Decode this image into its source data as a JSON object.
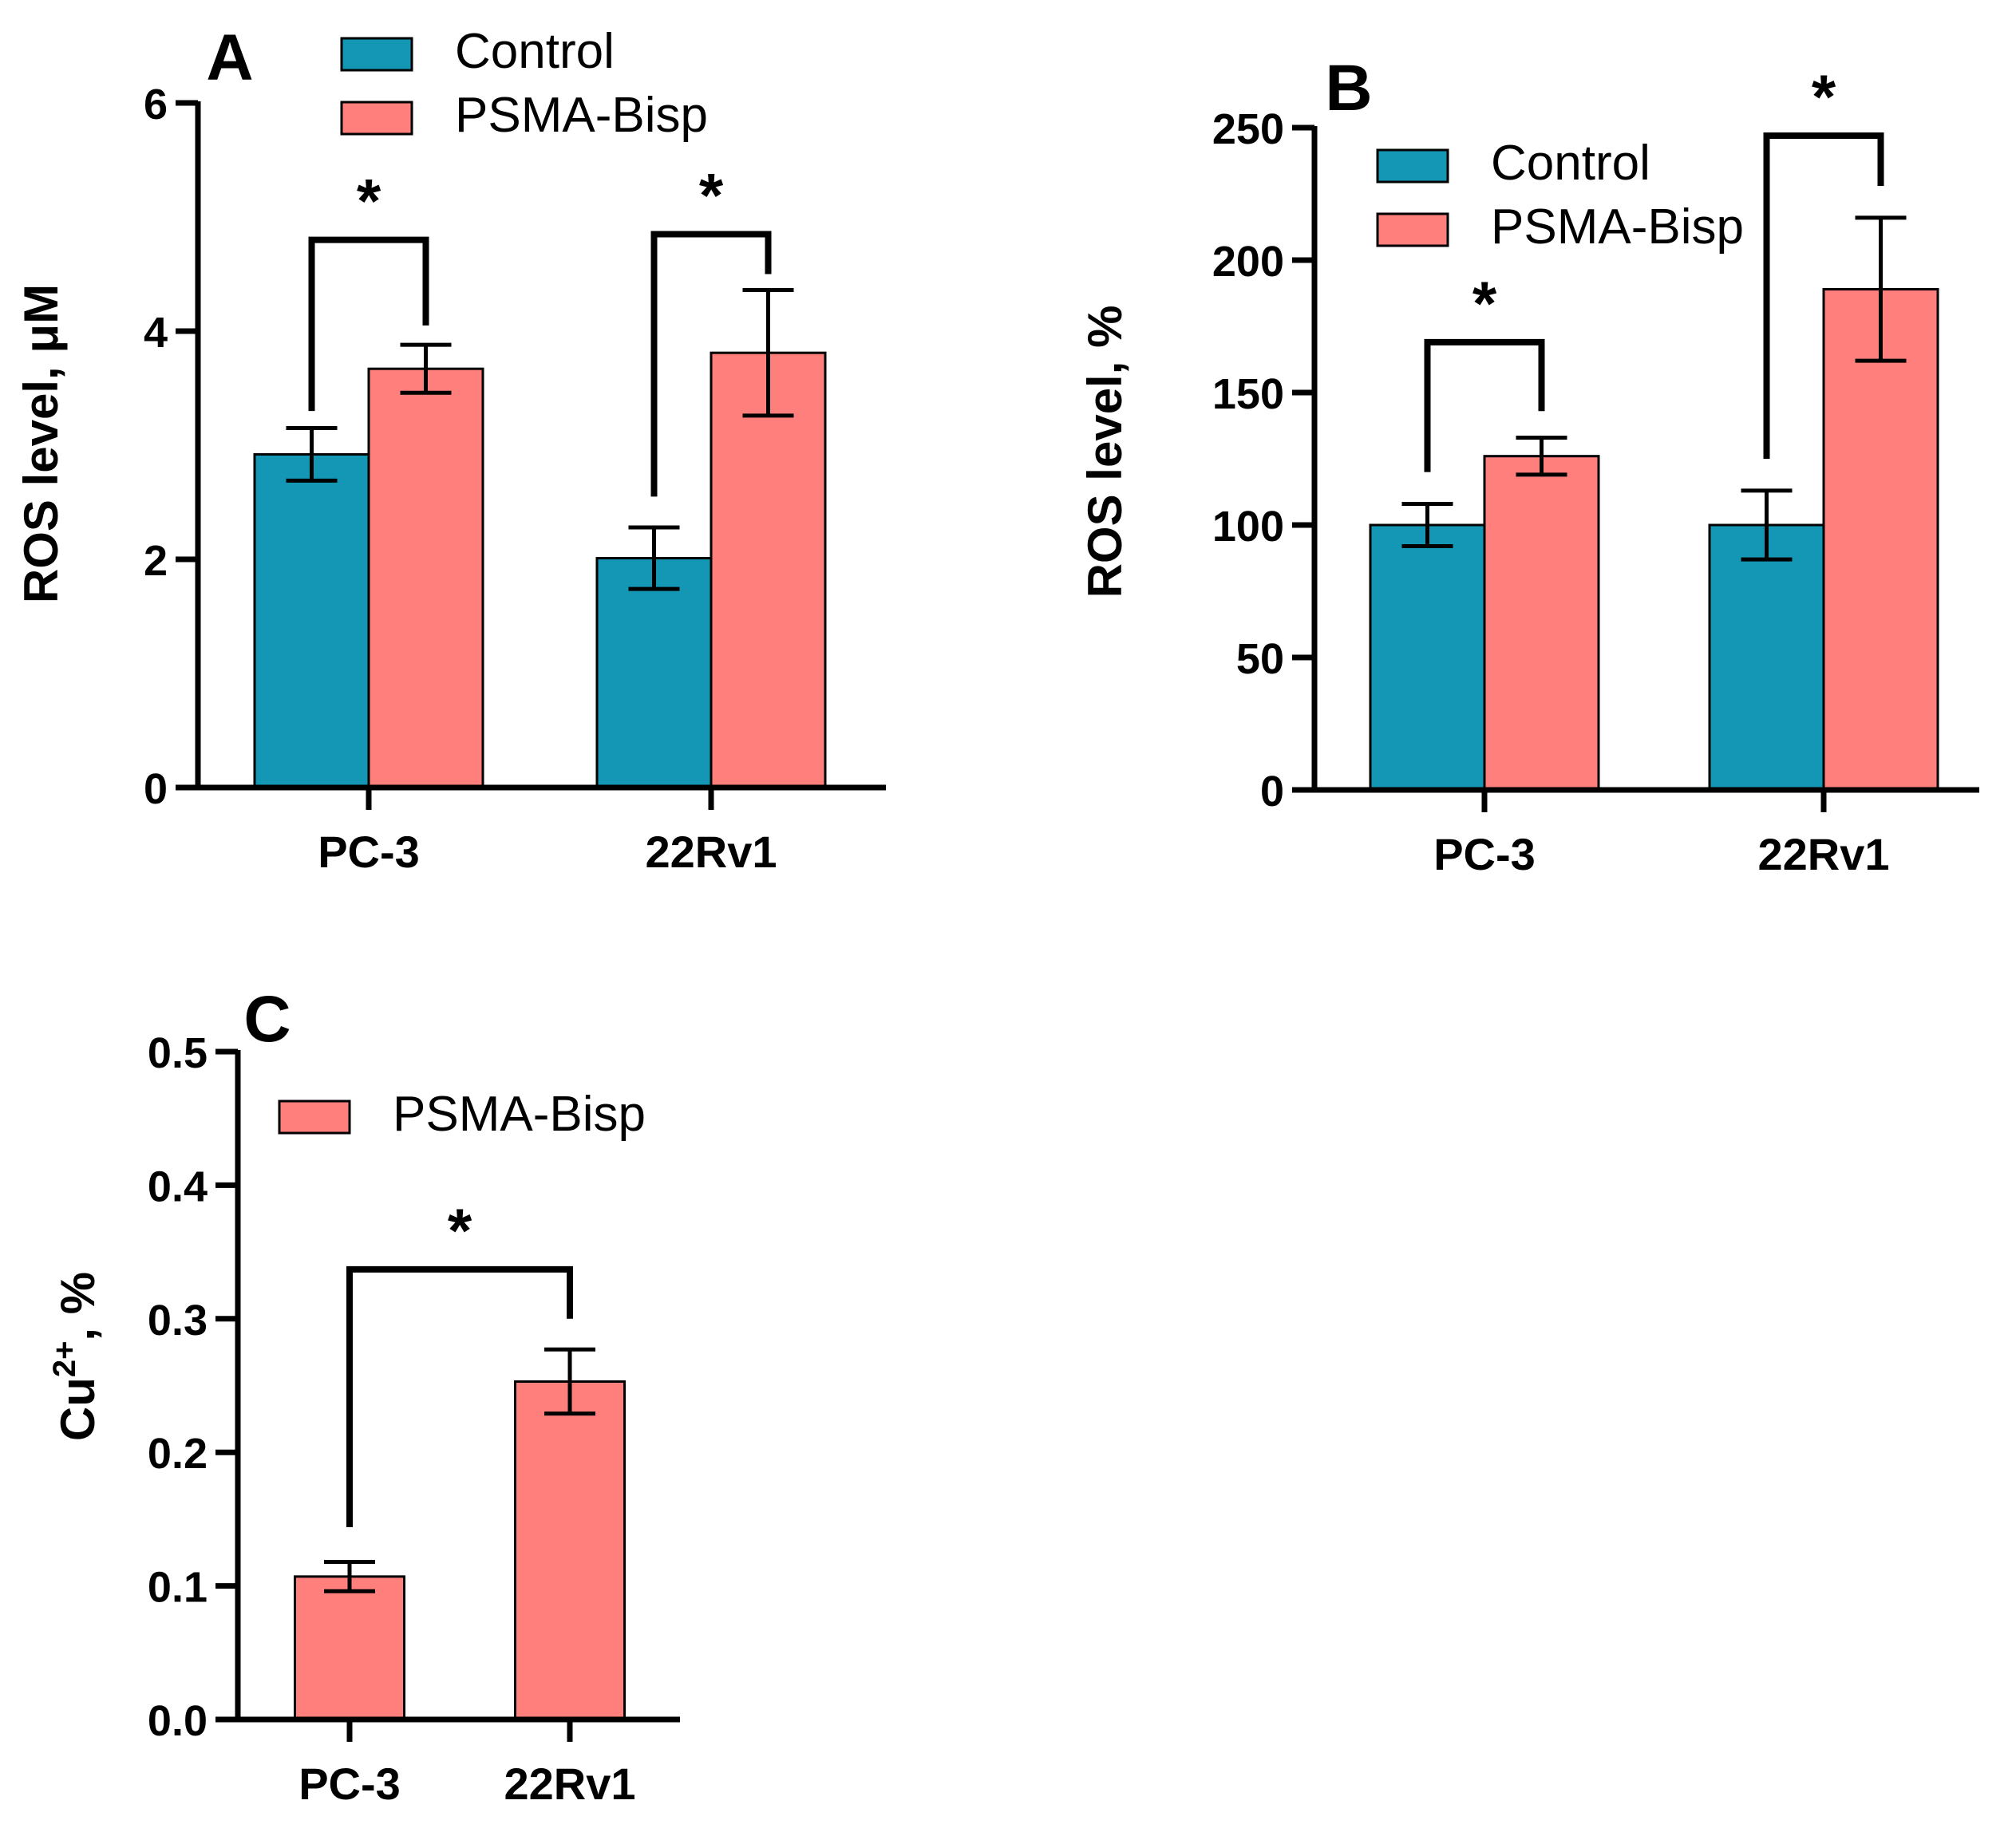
{
  "colors": {
    "control": "#1397B5",
    "treated": "#FF7F7D",
    "axis": "#000000"
  },
  "significance_marker": "*",
  "chart_data": [
    {
      "panel": "A",
      "type": "bar",
      "categories": [
        "PC-3",
        "22Rv1"
      ],
      "series": [
        {
          "name": "Control",
          "color": "#1397B5",
          "values": [
            2.92,
            2.01
          ],
          "errors": [
            0.23,
            0.27
          ]
        },
        {
          "name": "PSMA-Bisp",
          "color": "#FF7F7D",
          "values": [
            3.67,
            3.81
          ],
          "errors": [
            0.21,
            0.55
          ]
        }
      ],
      "ylabel": "ROS level, μM",
      "xlabel": "",
      "ylim": [
        0,
        6
      ],
      "yticks": [
        0,
        2,
        4,
        6
      ],
      "ytick_labels": [
        "0",
        "2",
        "4",
        "6"
      ],
      "legend": "top",
      "significance": [
        {
          "category": "PC-3",
          "from": "Control",
          "to": "PSMA-Bisp",
          "left_start": 3.3,
          "level": 4.8,
          "right_end": 4.05,
          "label": "*"
        },
        {
          "category": "22Rv1",
          "from": "Control",
          "to": "PSMA-Bisp",
          "left_start": 2.55,
          "level": 4.85,
          "right_end": 4.5,
          "label": "*"
        }
      ]
    },
    {
      "panel": "B",
      "type": "bar",
      "categories": [
        "PC-3",
        "22Rv1"
      ],
      "series": [
        {
          "name": "Control",
          "color": "#1397B5",
          "values": [
            100,
            100
          ],
          "errors": [
            8,
            13
          ]
        },
        {
          "name": "PSMA-Bisp",
          "color": "#FF7F7D",
          "values": [
            126,
            189
          ],
          "errors": [
            7,
            27
          ]
        }
      ],
      "ylabel": "ROS level, %",
      "xlabel": "",
      "ylim": [
        0,
        250
      ],
      "yticks": [
        0,
        50,
        100,
        150,
        200,
        250
      ],
      "ytick_labels": [
        "0",
        "50",
        "100",
        "150",
        "200",
        "250"
      ],
      "legend": "top-left",
      "significance": [
        {
          "category": "PC-3",
          "from": "Control",
          "to": "PSMA-Bisp",
          "left_start": 120,
          "level": 169,
          "right_end": 143,
          "label": "*"
        },
        {
          "category": "22Rv1",
          "from": "Control",
          "to": "PSMA-Bisp",
          "left_start": 125,
          "level": 247,
          "right_end": 228,
          "label": "*"
        }
      ]
    },
    {
      "panel": "C",
      "type": "bar",
      "categories": [
        "PC-3",
        "22Rv1"
      ],
      "series": [
        {
          "name": "PSMA-Bisp",
          "color": "#FF7F7D",
          "values": [
            0.107,
            0.253
          ],
          "errors": [
            0.011,
            0.024
          ]
        }
      ],
      "ylabel": "Cu2+, %",
      "ylabel_parts": {
        "base": "Cu",
        "sup": "2+",
        "rest": ", %"
      },
      "xlabel": "",
      "ylim": [
        0,
        0.5
      ],
      "yticks": [
        0,
        0.1,
        0.2,
        0.3,
        0.4,
        0.5
      ],
      "ytick_labels": [
        "0.0",
        "0.1",
        "0.2",
        "0.3",
        "0.4",
        "0.5"
      ],
      "legend": "top-left",
      "significance": [
        {
          "from_category": "PC-3",
          "to_category": "22Rv1",
          "left_start": 0.144,
          "level": 0.337,
          "right_end": 0.3,
          "label": "*"
        }
      ]
    }
  ]
}
